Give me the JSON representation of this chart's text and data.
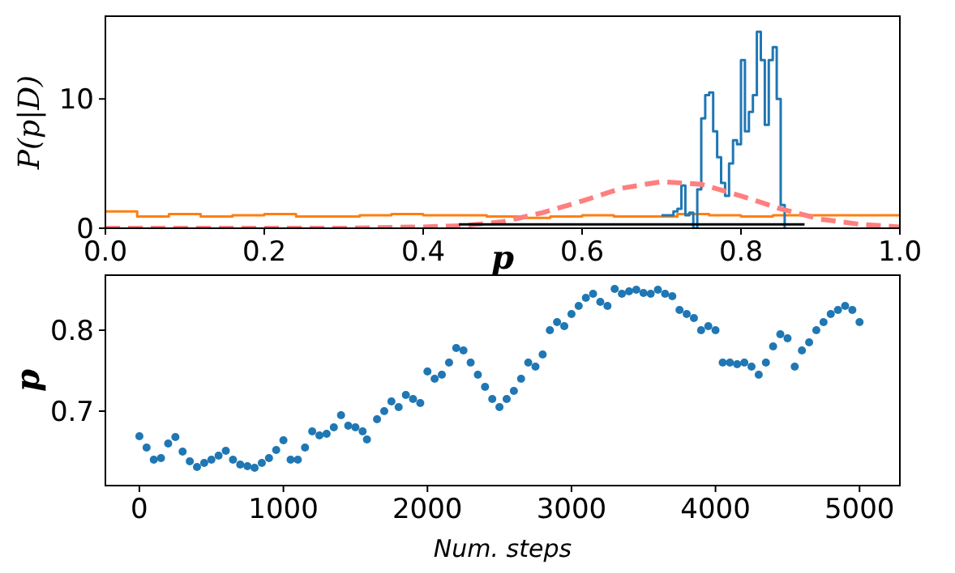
{
  "chart_data": [
    {
      "type": "step",
      "xlabel": "p",
      "ylabel": "P(p|D)",
      "xlim": [
        0,
        1
      ],
      "ylim": [
        0,
        16.4
      ],
      "xticks": [
        {
          "value": 0,
          "label": "0.0"
        },
        0.2,
        0.4,
        0.6,
        0.8,
        {
          "value": 1,
          "label": "1.0"
        }
      ],
      "yticks": [
        0,
        10
      ],
      "grid": false,
      "series": [
        {
          "color": "#ff7f0e",
          "x": [
            0,
            0.04,
            0.08,
            0.12,
            0.16,
            0.2,
            0.24,
            0.28,
            0.32,
            0.36,
            0.4,
            0.44,
            0.48,
            0.52,
            0.56,
            0.6,
            0.64,
            0.68,
            0.72,
            0.76,
            0.8,
            0.84,
            0.88,
            0.92,
            0.96,
            1
          ],
          "values": [
            1.3,
            0.9,
            1.1,
            0.9,
            1.0,
            1.1,
            0.9,
            0.9,
            1.0,
            1.1,
            1.0,
            1.0,
            0.9,
            0.8,
            0.9,
            1.0,
            0.9,
            0.9,
            1.1,
            1.0,
            0.9,
            1.0,
            1.0,
            1.0,
            1.0,
            1.0
          ]
        },
        {
          "color": "#1f77b4",
          "x": [
            0.7,
            0.705,
            0.71,
            0.715,
            0.72,
            0.725,
            0.73,
            0.735,
            0.74,
            0.745,
            0.75,
            0.755,
            0.76,
            0.765,
            0.77,
            0.775,
            0.78,
            0.785,
            0.79,
            0.795,
            0.8,
            0.805,
            0.81,
            0.815,
            0.82,
            0.825,
            0.83,
            0.835,
            0.84,
            0.845,
            0.85,
            0.855
          ],
          "values": [
            1,
            1,
            1,
            1.3,
            1.5,
            3.3,
            1,
            1.2,
            0,
            3,
            8.5,
            10.3,
            10.5,
            7.5,
            5.5,
            3.5,
            2.5,
            5,
            6.8,
            6.5,
            13,
            7.5,
            9,
            10.3,
            15.2,
            13,
            8,
            13,
            14,
            10,
            1.8,
            0
          ]
        },
        {
          "type": "line",
          "color": "#ff7f7f",
          "line_style": "dashed",
          "x": [
            0,
            0.1,
            0.2,
            0.3,
            0.4,
            0.45,
            0.5,
            0.55,
            0.6,
            0.65,
            0.7,
            0.75,
            0.8,
            0.85,
            0.9,
            0.95,
            1
          ],
          "values": [
            0,
            0,
            0,
            0,
            0.1,
            0.2,
            0.5,
            1.2,
            2.1,
            3.1,
            3.6,
            3.4,
            2.5,
            1.5,
            0.7,
            0.3,
            0.1
          ]
        },
        {
          "type": "line",
          "color": "#000000",
          "x": [
            0.445,
            0.88
          ],
          "values": [
            0.3,
            0.3
          ]
        }
      ]
    },
    {
      "type": "scatter",
      "xlabel": "Num. steps",
      "ylabel": "p",
      "xlim": [
        -236,
        5280
      ],
      "ylim": [
        0.608,
        0.868
      ],
      "xticks": [
        0,
        1000,
        2000,
        3000,
        4000,
        5000
      ],
      "yticks": [
        0.7,
        0.8
      ],
      "grid": false,
      "marker": "circle",
      "series": [
        {
          "color": "#1f77b4",
          "x": [
            0,
            50,
            100,
            150,
            200,
            250,
            300,
            350,
            400,
            450,
            500,
            550,
            600,
            650,
            700,
            750,
            800,
            850,
            900,
            950,
            1000,
            1050,
            1100,
            1150,
            1200,
            1250,
            1300,
            1350,
            1400,
            1450,
            1500,
            1550,
            1580,
            1650,
            1700,
            1750,
            1800,
            1850,
            1900,
            1950,
            2000,
            2050,
            2100,
            2150,
            2200,
            2250,
            2300,
            2350,
            2400,
            2450,
            2500,
            2550,
            2600,
            2650,
            2700,
            2750,
            2800,
            2850,
            2900,
            2950,
            3000,
            3050,
            3100,
            3150,
            3200,
            3250,
            3300,
            3350,
            3400,
            3450,
            3500,
            3550,
            3600,
            3650,
            3700,
            3750,
            3800,
            3850,
            3900,
            3950,
            4000,
            4050,
            4100,
            4150,
            4200,
            4250,
            4300,
            4350,
            4400,
            4450,
            4500,
            4550,
            4600,
            4650,
            4700,
            4750,
            4800,
            4850,
            4900,
            4950,
            5000
          ],
          "values": [
            0.669,
            0.655,
            0.64,
            0.642,
            0.66,
            0.668,
            0.65,
            0.638,
            0.631,
            0.636,
            0.64,
            0.645,
            0.651,
            0.64,
            0.634,
            0.632,
            0.63,
            0.636,
            0.642,
            0.652,
            0.664,
            0.64,
            0.64,
            0.655,
            0.675,
            0.67,
            0.672,
            0.68,
            0.695,
            0.682,
            0.68,
            0.675,
            0.665,
            0.69,
            0.7,
            0.712,
            0.705,
            0.72,
            0.715,
            0.71,
            0.749,
            0.74,
            0.745,
            0.76,
            0.778,
            0.775,
            0.76,
            0.745,
            0.73,
            0.715,
            0.705,
            0.715,
            0.725,
            0.74,
            0.76,
            0.755,
            0.77,
            0.8,
            0.81,
            0.805,
            0.82,
            0.83,
            0.84,
            0.845,
            0.835,
            0.83,
            0.851,
            0.845,
            0.848,
            0.85,
            0.846,
            0.845,
            0.85,
            0.845,
            0.842,
            0.825,
            0.82,
            0.815,
            0.8,
            0.805,
            0.8,
            0.76,
            0.76,
            0.758,
            0.76,
            0.755,
            0.745,
            0.76,
            0.78,
            0.795,
            0.79,
            0.755,
            0.775,
            0.785,
            0.8,
            0.81,
            0.82,
            0.825,
            0.83,
            0.825,
            0.81
          ]
        }
      ]
    }
  ]
}
